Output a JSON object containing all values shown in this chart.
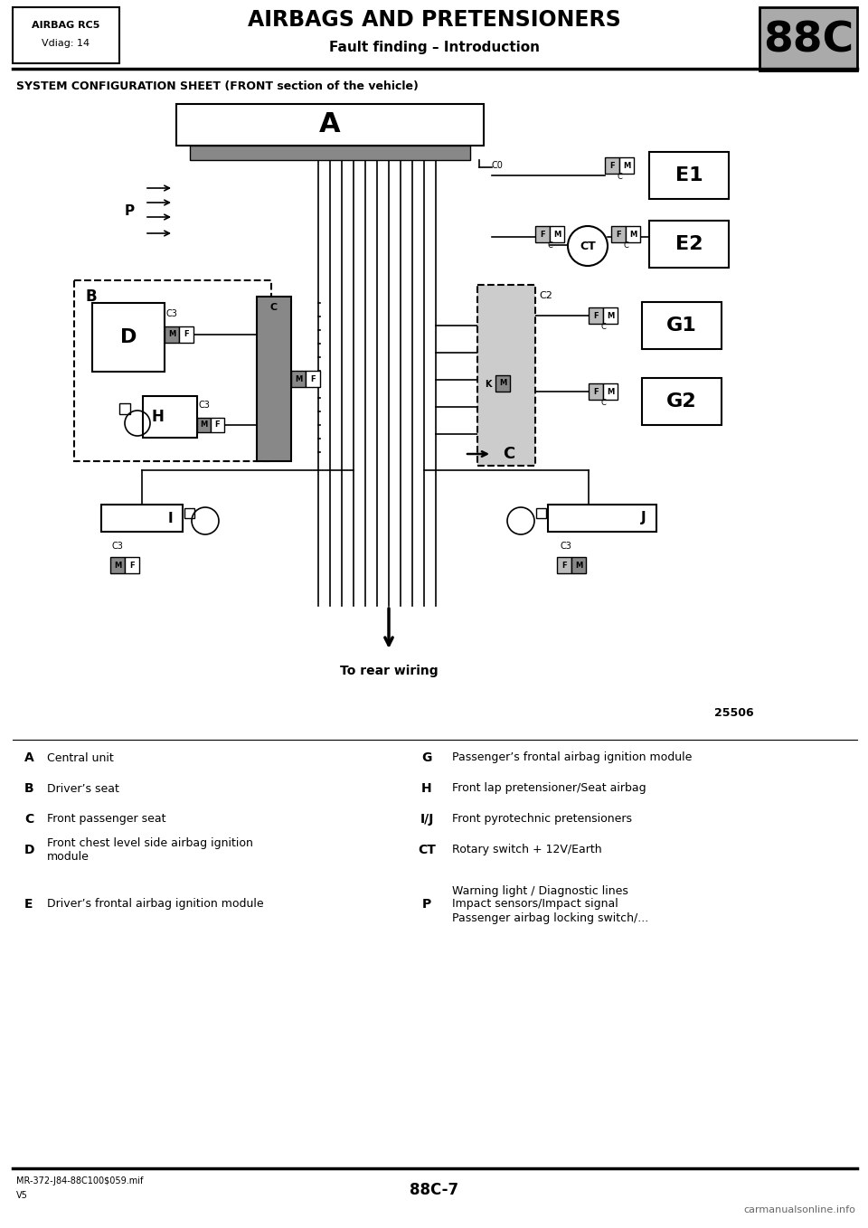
{
  "title_main": "AIRBAGS AND PRETENSIONERS",
  "title_sub": "Fault finding – Introduction",
  "title_left_line1": "AIRBAG RC5",
  "title_left_line2": "Vdiag: 14",
  "title_badge": "88C",
  "section_title": "SYSTEM CONFIGURATION SHEET (FRONT section of the vehicle)",
  "diagram_number": "25506",
  "to_rear": "To rear wiring",
  "footer_left_line1": "MR-372-J84-88C100$059.mif",
  "footer_left_line2": "V5",
  "footer_center": "88C-7",
  "footer_right": "carmanualsonline.info",
  "bg_color": "#ffffff"
}
